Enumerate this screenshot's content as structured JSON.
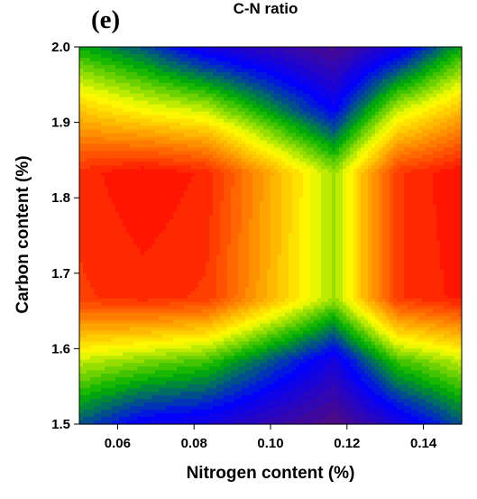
{
  "panel_label": "(e)",
  "chart_data": {
    "type": "heatmap",
    "title": "C-N ratio",
    "xlabel": "Nitrogen content (%)",
    "ylabel": "Carbon content (%)",
    "xlim": [
      0.05,
      0.15
    ],
    "ylim": [
      1.5,
      2.0
    ],
    "x_ticks": [
      "0.06",
      "0.08",
      "0.10",
      "0.12",
      "0.14"
    ],
    "x_tick_values": [
      0.06,
      0.08,
      0.1,
      0.12,
      0.14
    ],
    "y_ticks": [
      "1.5",
      "1.6",
      "1.7",
      "1.8",
      "1.9",
      "2.0"
    ],
    "y_tick_values": [
      1.5,
      1.6,
      1.7,
      1.8,
      1.9,
      2.0
    ],
    "grid_x": [
      0.05,
      0.0667,
      0.0833,
      0.1167,
      0.1333,
      0.15
    ],
    "grid_y": [
      1.5,
      1.5833,
      1.6667,
      1.8333,
      1.9167,
      2.0
    ],
    "z_relative": [
      [
        0.3,
        0.18,
        0.15,
        0.0,
        0.14,
        0.3
      ],
      [
        0.55,
        0.5,
        0.45,
        0.15,
        0.45,
        0.55
      ],
      [
        0.9,
        0.92,
        0.9,
        0.52,
        0.9,
        0.95
      ],
      [
        0.92,
        0.97,
        0.93,
        0.52,
        0.9,
        0.97
      ],
      [
        0.68,
        0.6,
        0.55,
        0.2,
        0.55,
        0.7
      ],
      [
        0.4,
        0.3,
        0.15,
        0.02,
        0.15,
        0.4
      ]
    ],
    "colormap": [
      "#4a0a8a",
      "#0000ff",
      "#00b000",
      "#ffff00",
      "#ff8000",
      "#ff0000"
    ],
    "levels": 32,
    "grid": false
  }
}
